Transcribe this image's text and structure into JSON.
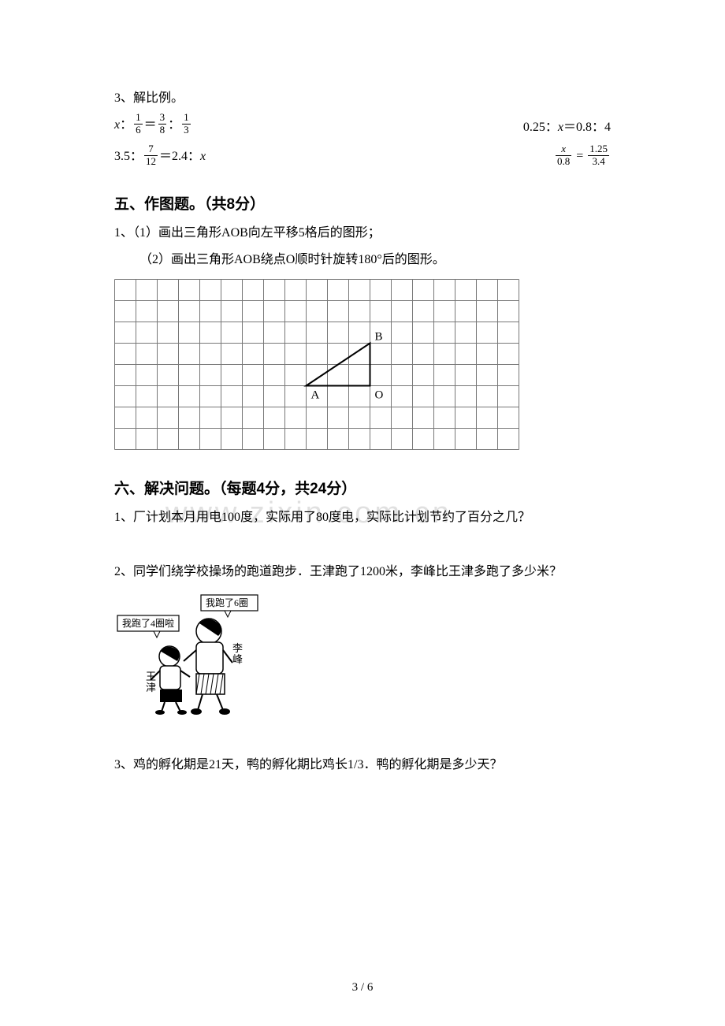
{
  "q3": {
    "title": "3、解比例。",
    "rows": [
      {
        "left": {
          "type": "frac_ratio",
          "a_var": "x",
          "a_num": "1",
          "a_den": "6",
          "b_num": "3",
          "b_den": "8",
          "c_num": "1",
          "c_den": "3"
        },
        "right": {
          "type": "plain",
          "text": "0.25：x＝0.8：4",
          "has_x": true
        }
      },
      {
        "left": {
          "type": "frac_ratio2",
          "prefix": "3.5：",
          "mid_num": "7",
          "mid_den": "12",
          "eq": "＝2.4：",
          "var": "x"
        },
        "right": {
          "type": "frac_eq",
          "l_num_var": "x",
          "l_den": "0.8",
          "r_num": "1.25",
          "r_den": "3.4"
        }
      }
    ]
  },
  "section5": {
    "title": "五、作图题。（共8分）",
    "q1_prefix": "1、",
    "sub1": "（1）画出三角形AOB向左平移5格后的图形；",
    "sub2": "（2）画出三角形AOB绕点O顺时针旋转180°后的图形。"
  },
  "grid": {
    "cols": 19,
    "rows": 8,
    "cell": 27,
    "stroke": "#777777",
    "triangle": {
      "A": {
        "col": 9,
        "row": 5,
        "label": "A"
      },
      "B": {
        "col": 12,
        "row": 3,
        "label": "B"
      },
      "O": {
        "col": 12,
        "row": 5,
        "label": "O"
      }
    },
    "tri_stroke": "#000000",
    "tri_width": 2
  },
  "section6": {
    "title": "六、解决问题。（每题4分，共24分）",
    "q1": "1、厂计划本月用电100度，实际用了80度电，实际比计划节约了百分之几？",
    "q2": "2、同学们绕学校操场的跑道跑步．王津跑了1200米，李峰比王津多跑了多少米？",
    "q3": "3、鸡的孵化期是21天，鸭的孵化期比鸡长1/3．鸭的孵化期是多少天？"
  },
  "cartoon": {
    "bubble1": "我跑了4圈啦",
    "bubble2": "我跑了6圈",
    "name1_a": "王",
    "name1_b": "津",
    "name2_a": "李",
    "name2_b": "峰",
    "box_fill": "#ffffff",
    "box_stroke": "#000000",
    "lines_color": "#000000"
  },
  "watermark": "www.zixin.com.cn",
  "page": "3 / 6"
}
